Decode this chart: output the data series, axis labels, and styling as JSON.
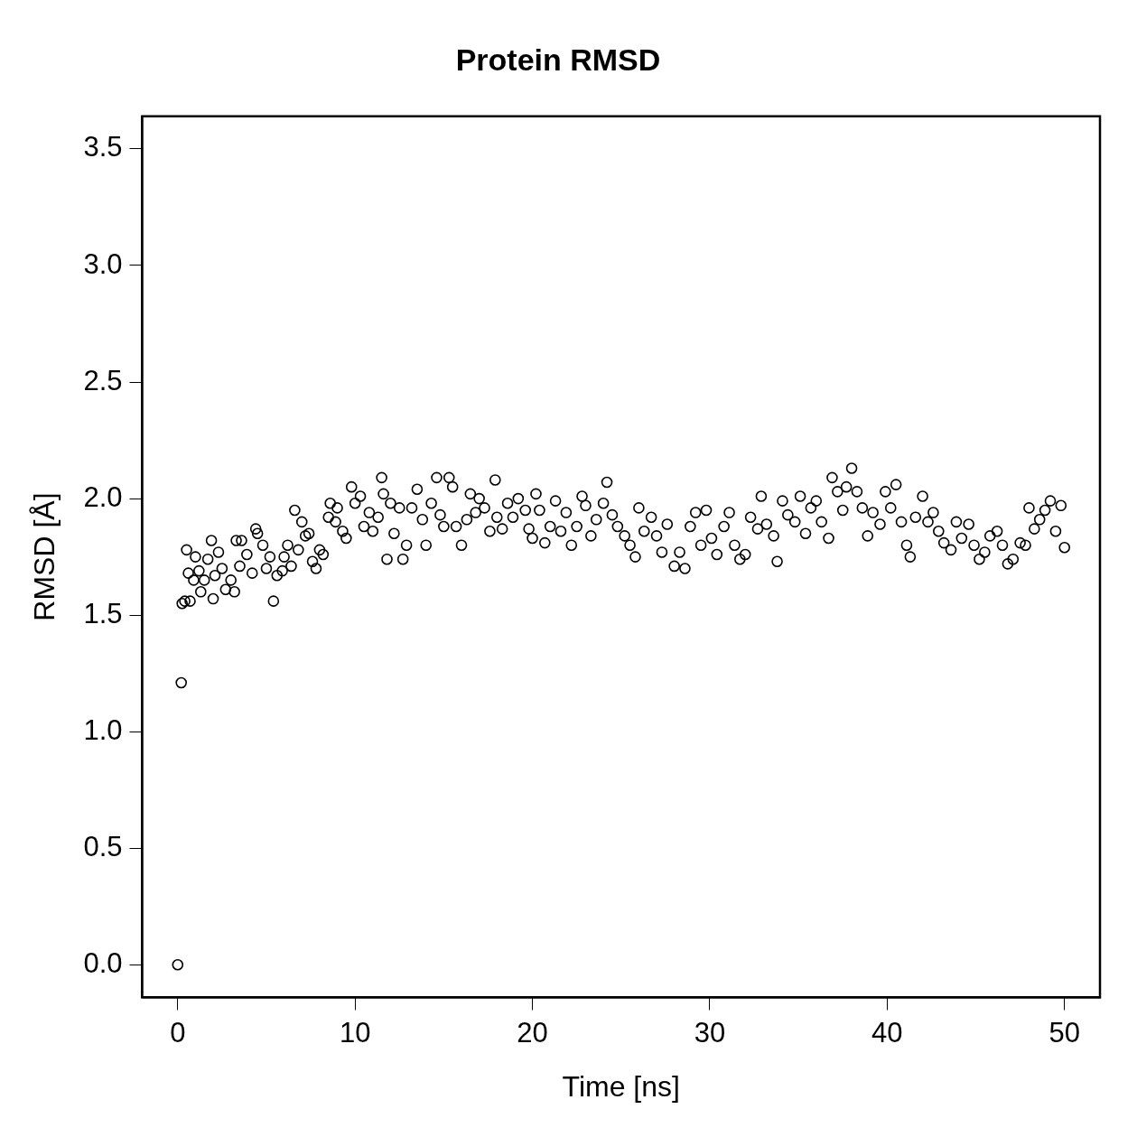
{
  "chart_data": {
    "type": "scatter",
    "title": "Protein RMSD",
    "xlabel": "Time [ns]",
    "ylabel": "RMSD [Å]",
    "marker": "circle",
    "xlim": [
      -2,
      52
    ],
    "xticks": [
      0,
      10,
      20,
      30,
      40,
      50
    ],
    "ylim": [
      -0.14,
      3.64
    ],
    "yticks": [
      {
        "value": 0,
        "label": "0.0"
      },
      {
        "value": 0.5,
        "label": "0.5"
      },
      {
        "value": 1,
        "label": "1.0"
      },
      {
        "value": 1.5,
        "label": "1.5"
      },
      {
        "value": 2,
        "label": "2.0"
      },
      {
        "value": 2.5,
        "label": "2.5"
      },
      {
        "value": 3,
        "label": "3.0"
      },
      {
        "value": 3.5,
        "label": "3.5"
      }
    ],
    "series": [
      {
        "color": "#000000",
        "x": [
          0.0,
          0.2,
          0.25,
          0.4,
          0.5,
          0.6,
          0.7,
          0.9,
          1.0,
          1.2,
          1.3,
          1.5,
          1.7,
          1.9,
          2.0,
          2.1,
          2.3,
          2.5,
          2.7,
          3.0,
          3.2,
          3.3,
          3.5,
          3.6,
          3.9,
          4.2,
          4.4,
          4.5,
          4.8,
          5.0,
          5.2,
          5.4,
          5.6,
          5.9,
          6.0,
          6.2,
          6.4,
          6.6,
          6.8,
          7.0,
          7.2,
          7.4,
          7.6,
          7.8,
          8.0,
          8.2,
          8.5,
          8.6,
          8.9,
          9.0,
          9.3,
          9.5,
          9.8,
          10.0,
          10.3,
          10.5,
          10.8,
          11.0,
          11.3,
          11.5,
          11.6,
          11.8,
          12.0,
          12.2,
          12.5,
          12.7,
          12.9,
          13.2,
          13.5,
          13.8,
          14.0,
          14.3,
          14.6,
          14.8,
          15.0,
          15.3,
          15.5,
          15.7,
          16.0,
          16.3,
          16.5,
          16.8,
          17.0,
          17.3,
          17.6,
          17.9,
          18.0,
          18.3,
          18.6,
          18.9,
          19.2,
          19.6,
          19.8,
          20.0,
          20.2,
          20.4,
          20.7,
          21.0,
          21.3,
          21.6,
          21.9,
          22.2,
          22.5,
          22.8,
          23.0,
          23.3,
          23.6,
          24.0,
          24.2,
          24.5,
          24.8,
          25.2,
          25.5,
          25.8,
          26.0,
          26.3,
          26.7,
          27.0,
          27.3,
          27.6,
          28.0,
          28.3,
          28.6,
          28.9,
          29.2,
          29.5,
          29.8,
          30.1,
          30.4,
          30.8,
          31.1,
          31.4,
          31.7,
          32.0,
          32.3,
          32.7,
          32.9,
          33.2,
          33.6,
          33.8,
          34.1,
          34.4,
          34.8,
          35.1,
          35.4,
          35.7,
          36.0,
          36.3,
          36.7,
          36.9,
          37.2,
          37.5,
          37.7,
          38.0,
          38.3,
          38.6,
          38.9,
          39.2,
          39.6,
          39.9,
          40.2,
          40.5,
          40.8,
          41.1,
          41.3,
          41.6,
          42.0,
          42.3,
          42.6,
          42.9,
          43.2,
          43.6,
          43.9,
          44.2,
          44.6,
          44.9,
          45.2,
          45.5,
          45.8,
          46.2,
          46.5,
          46.8,
          47.1,
          47.5,
          47.8,
          48.0,
          48.3,
          48.6,
          48.9,
          49.2,
          49.5,
          49.8,
          50.0
        ],
        "values": [
          0.0,
          1.21,
          1.55,
          1.56,
          1.78,
          1.68,
          1.56,
          1.65,
          1.75,
          1.69,
          1.6,
          1.65,
          1.74,
          1.82,
          1.57,
          1.67,
          1.77,
          1.7,
          1.61,
          1.65,
          1.6,
          1.82,
          1.71,
          1.82,
          1.76,
          1.68,
          1.87,
          1.85,
          1.8,
          1.7,
          1.75,
          1.56,
          1.67,
          1.69,
          1.75,
          1.8,
          1.71,
          1.95,
          1.78,
          1.9,
          1.84,
          1.85,
          1.73,
          1.7,
          1.78,
          1.76,
          1.92,
          1.98,
          1.9,
          1.96,
          1.86,
          1.83,
          2.05,
          1.98,
          2.01,
          1.88,
          1.94,
          1.86,
          1.92,
          2.09,
          2.02,
          1.74,
          1.98,
          1.85,
          1.96,
          1.74,
          1.8,
          1.96,
          2.04,
          1.91,
          1.8,
          1.98,
          2.09,
          1.93,
          1.88,
          2.09,
          2.05,
          1.88,
          1.8,
          1.91,
          2.02,
          1.94,
          2.0,
          1.96,
          1.86,
          2.08,
          1.92,
          1.87,
          1.98,
          1.92,
          2.0,
          1.95,
          1.87,
          1.83,
          2.02,
          1.95,
          1.81,
          1.88,
          1.99,
          1.86,
          1.94,
          1.8,
          1.88,
          2.01,
          1.97,
          1.84,
          1.91,
          1.98,
          2.07,
          1.93,
          1.88,
          1.84,
          1.8,
          1.75,
          1.96,
          1.86,
          1.92,
          1.84,
          1.77,
          1.89,
          1.71,
          1.77,
          1.7,
          1.88,
          1.94,
          1.8,
          1.95,
          1.83,
          1.76,
          1.88,
          1.94,
          1.8,
          1.74,
          1.76,
          1.92,
          1.87,
          2.01,
          1.89,
          1.84,
          1.73,
          1.99,
          1.93,
          1.9,
          2.01,
          1.85,
          1.96,
          1.99,
          1.9,
          1.83,
          2.09,
          2.03,
          1.95,
          2.05,
          2.13,
          2.03,
          1.96,
          1.84,
          1.94,
          1.89,
          2.03,
          1.96,
          2.06,
          1.9,
          1.8,
          1.75,
          1.92,
          2.01,
          1.9,
          1.94,
          1.86,
          1.81,
          1.78,
          1.9,
          1.83,
          1.89,
          1.8,
          1.74,
          1.77,
          1.84,
          1.86,
          1.8,
          1.72,
          1.74,
          1.81,
          1.8,
          1.96,
          1.87,
          1.91,
          1.95,
          1.99,
          1.86,
          1.97,
          1.79
        ]
      }
    ]
  }
}
